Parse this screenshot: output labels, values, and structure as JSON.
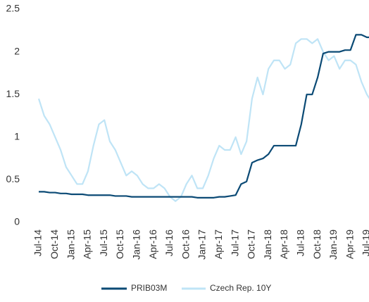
{
  "chart_data": {
    "type": "line",
    "x": [
      "2014-07",
      "2014-08",
      "2014-09",
      "2014-10",
      "2014-11",
      "2014-12",
      "2015-01",
      "2015-02",
      "2015-03",
      "2015-04",
      "2015-05",
      "2015-06",
      "2015-07",
      "2015-08",
      "2015-09",
      "2015-10",
      "2015-11",
      "2015-12",
      "2016-01",
      "2016-02",
      "2016-03",
      "2016-04",
      "2016-05",
      "2016-06",
      "2016-07",
      "2016-08",
      "2016-09",
      "2016-10",
      "2016-11",
      "2016-12",
      "2017-01",
      "2017-02",
      "2017-03",
      "2017-04",
      "2017-05",
      "2017-06",
      "2017-07",
      "2017-08",
      "2017-09",
      "2017-10",
      "2017-11",
      "2017-12",
      "2018-01",
      "2018-02",
      "2018-03",
      "2018-04",
      "2018-05",
      "2018-06",
      "2018-07",
      "2018-08",
      "2018-09",
      "2018-10",
      "2018-11",
      "2018-12",
      "2019-01",
      "2019-02",
      "2019-03",
      "2019-04",
      "2019-05",
      "2019-06",
      "2019-07",
      "2019-08"
    ],
    "series": [
      {
        "name": "PRIB03M",
        "color": "#0b4a75",
        "values": [
          0.36,
          0.36,
          0.35,
          0.35,
          0.34,
          0.34,
          0.33,
          0.33,
          0.33,
          0.32,
          0.32,
          0.32,
          0.32,
          0.32,
          0.31,
          0.31,
          0.31,
          0.3,
          0.3,
          0.3,
          0.3,
          0.3,
          0.3,
          0.3,
          0.3,
          0.3,
          0.3,
          0.3,
          0.3,
          0.29,
          0.29,
          0.29,
          0.29,
          0.3,
          0.3,
          0.31,
          0.32,
          0.45,
          0.48,
          0.7,
          0.73,
          0.75,
          0.8,
          0.9,
          0.9,
          0.9,
          0.9,
          0.9,
          1.15,
          1.5,
          1.5,
          1.7,
          1.98,
          2.0,
          2.0,
          2.0,
          2.02,
          2.02,
          2.2,
          2.2,
          2.17,
          2.17
        ]
      },
      {
        "name": "Czech Rep. 10Y",
        "color": "#bfe4f6",
        "values": [
          1.45,
          1.25,
          1.15,
          1.0,
          0.85,
          0.65,
          0.55,
          0.45,
          0.45,
          0.6,
          0.9,
          1.15,
          1.2,
          0.95,
          0.85,
          0.7,
          0.55,
          0.6,
          0.55,
          0.45,
          0.4,
          0.4,
          0.45,
          0.4,
          0.3,
          0.25,
          0.3,
          0.45,
          0.55,
          0.4,
          0.4,
          0.55,
          0.75,
          0.9,
          0.85,
          0.85,
          1.0,
          0.8,
          0.95,
          1.45,
          1.7,
          1.5,
          1.8,
          1.9,
          1.9,
          1.8,
          1.85,
          2.1,
          2.15,
          2.15,
          2.1,
          2.15,
          2.0,
          1.9,
          1.95,
          1.8,
          1.9,
          1.9,
          1.85,
          1.65,
          1.5,
          1.4
        ]
      }
    ],
    "xlim": [
      "2014-07",
      "2019-07"
    ],
    "xticks": [
      {
        "value": "2014-07",
        "label": "Jul-14"
      },
      {
        "value": "2014-10",
        "label": "Oct-14"
      },
      {
        "value": "2015-01",
        "label": "Jan-15"
      },
      {
        "value": "2015-04",
        "label": "Apr-15"
      },
      {
        "value": "2015-07",
        "label": "Jul-15"
      },
      {
        "value": "2015-10",
        "label": "Oct-15"
      },
      {
        "value": "2016-01",
        "label": "Jan-16"
      },
      {
        "value": "2016-04",
        "label": "Apr-16"
      },
      {
        "value": "2016-07",
        "label": "Jul-16"
      },
      {
        "value": "2016-10",
        "label": "Oct-16"
      },
      {
        "value": "2017-01",
        "label": "Jan-17"
      },
      {
        "value": "2017-04",
        "label": "Apr-17"
      },
      {
        "value": "2017-07",
        "label": "Jul-17"
      },
      {
        "value": "2017-10",
        "label": "Oct-17"
      },
      {
        "value": "2018-01",
        "label": "Jan-18"
      },
      {
        "value": "2018-04",
        "label": "Apr-18"
      },
      {
        "value": "2018-07",
        "label": "Jul-18"
      },
      {
        "value": "2018-10",
        "label": "Oct-18"
      },
      {
        "value": "2019-01",
        "label": "Jan-19"
      },
      {
        "value": "2019-04",
        "label": "Apr-19"
      },
      {
        "value": "2019-07",
        "label": "Jul-19"
      }
    ],
    "ylim": [
      0,
      2.5
    ],
    "yticks": [
      0,
      0.5,
      1,
      1.5,
      2,
      2.5
    ],
    "grid": false,
    "legend": "bottom"
  }
}
